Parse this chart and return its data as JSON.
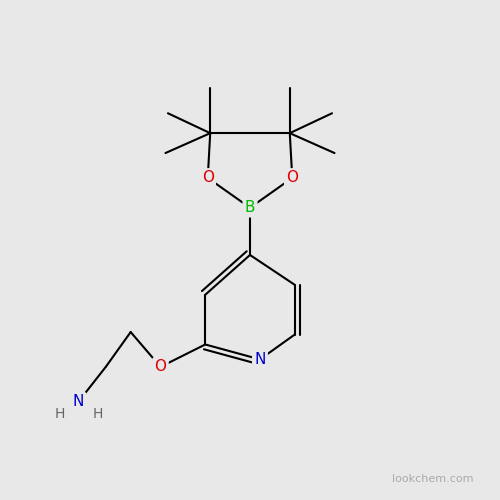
{
  "bg_color": "#e8e8e8",
  "bond_color": "#000000",
  "bond_width": 1.5,
  "atom_colors": {
    "B": "#00bb00",
    "O": "#dd0000",
    "N": "#0000cc",
    "C": "#000000"
  },
  "font_size_atom": 11,
  "font_size_H": 10,
  "watermark": "lookchem.com",
  "watermark_color": "#aaaaaa",
  "watermark_fontsize": 8
}
